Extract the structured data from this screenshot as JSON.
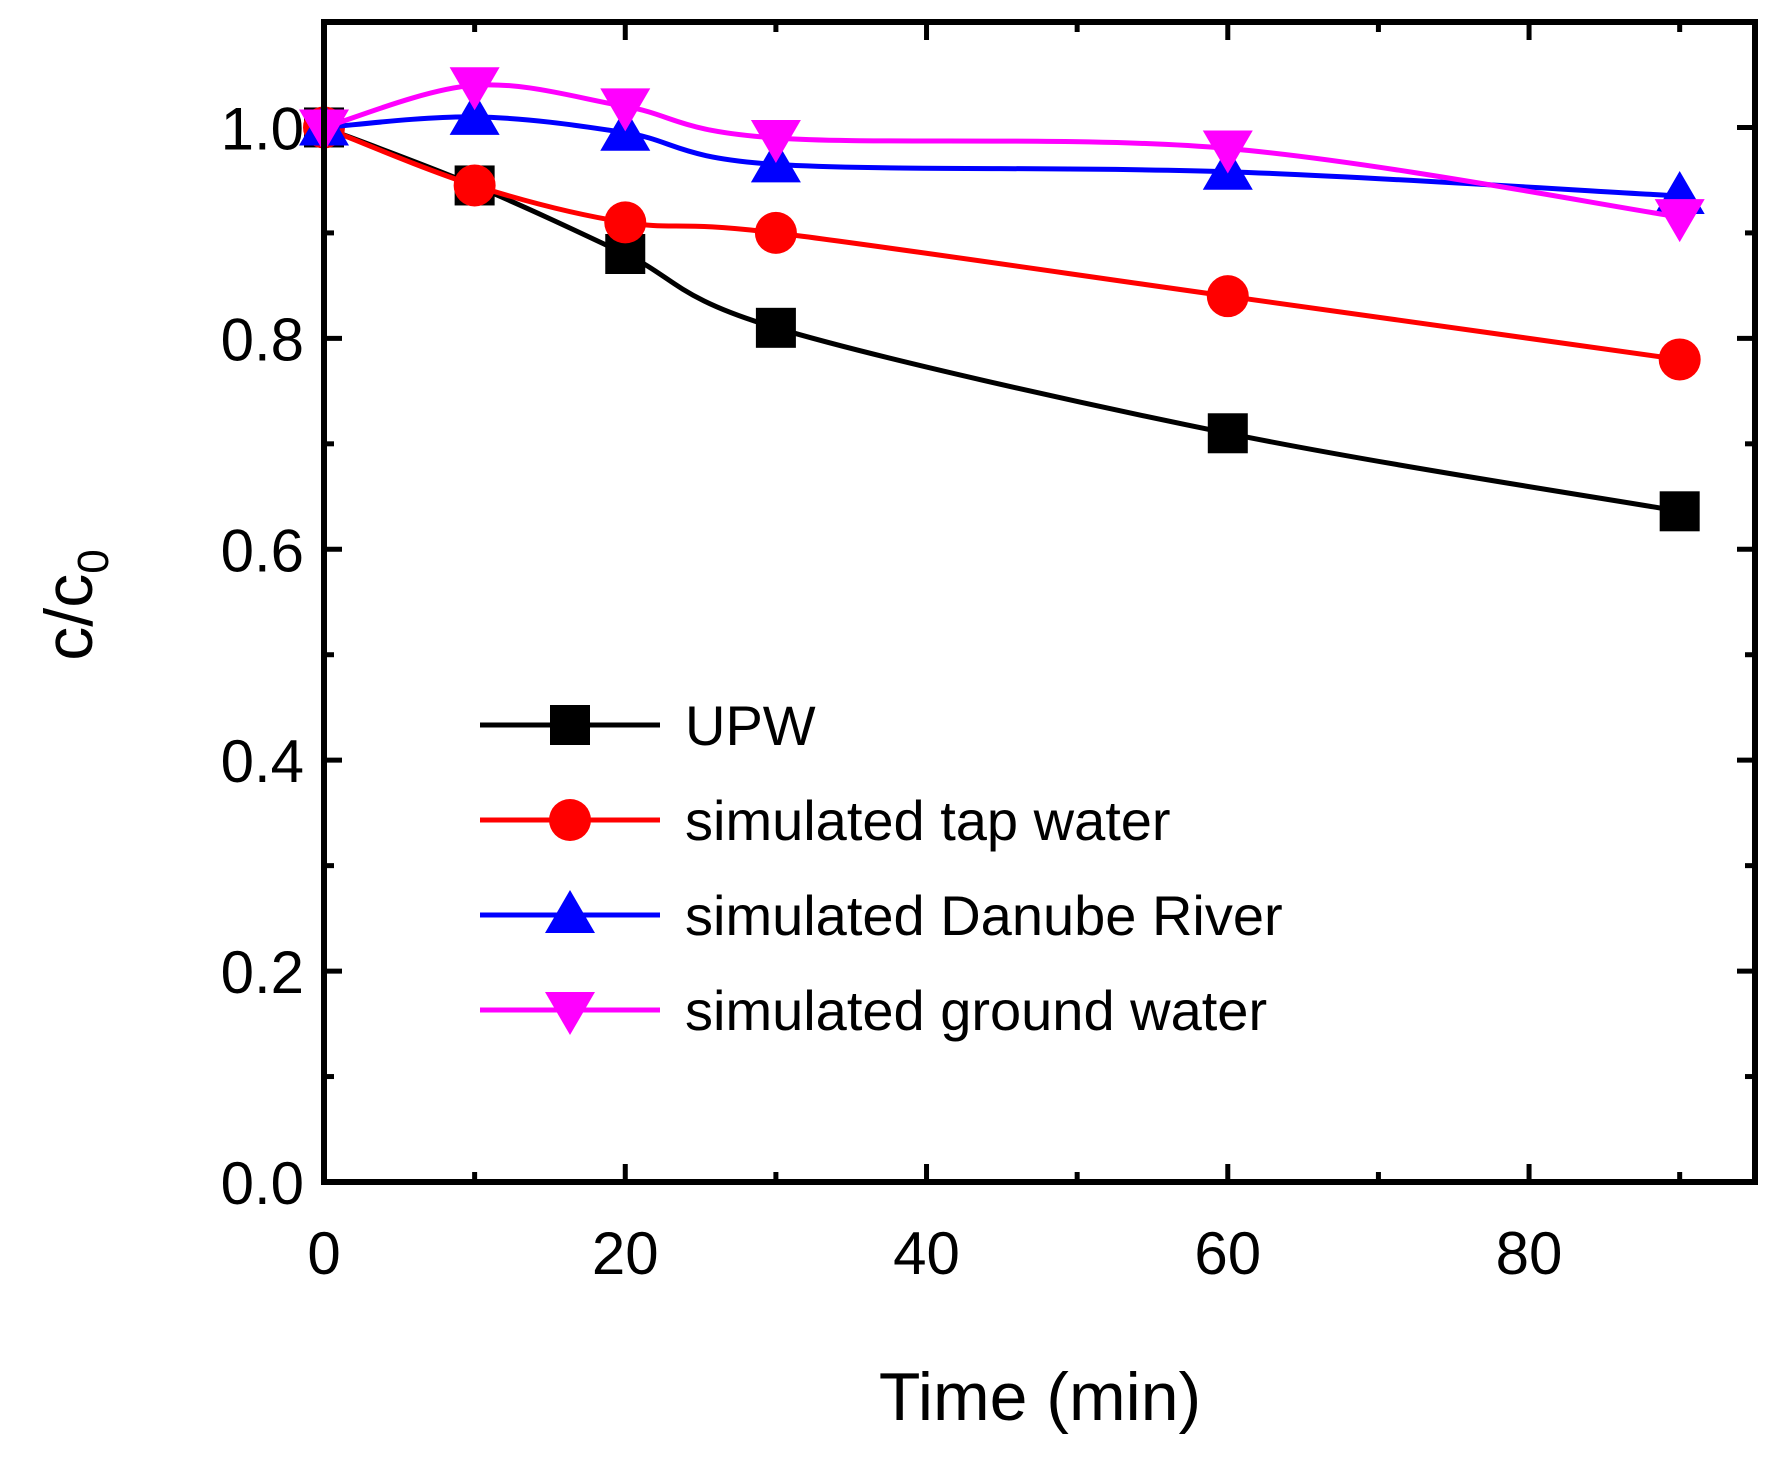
{
  "chart_data": {
    "type": "line",
    "title": "",
    "xlabel": "Time (min)",
    "ylabel_main": "c/c",
    "ylabel_sub": "0",
    "xlim": [
      0,
      95
    ],
    "ylim": [
      0,
      1.1
    ],
    "x_ticks": [
      0,
      20,
      40,
      60,
      80
    ],
    "x_minor_ticks": [
      10,
      30,
      50,
      70,
      90
    ],
    "y_ticks": [
      0.0,
      0.2,
      0.4,
      0.6,
      0.8,
      1.0
    ],
    "y_minor_ticks": [
      0.1,
      0.3,
      0.5,
      0.7,
      0.9
    ],
    "x_tick_labels": [
      "0",
      "20",
      "40",
      "60",
      "80"
    ],
    "y_tick_labels": [
      "0.0",
      "0.2",
      "0.4",
      "0.6",
      "0.8",
      "1.0"
    ],
    "grid": false,
    "legend_position": "center-left",
    "x": [
      0,
      10,
      20,
      30,
      60,
      90
    ],
    "series": [
      {
        "name": "UPW",
        "color": "#000000",
        "marker": "square",
        "values": [
          1.0,
          0.945,
          0.88,
          0.81,
          0.71,
          0.636
        ]
      },
      {
        "name": "simulated tap water",
        "color": "#ff0000",
        "marker": "circle",
        "values": [
          1.0,
          0.945,
          0.91,
          0.9,
          0.84,
          0.78
        ]
      },
      {
        "name": "simulated Danube River",
        "color": "#0000ff",
        "marker": "triangle-up",
        "values": [
          1.0,
          1.01,
          0.995,
          0.965,
          0.958,
          0.935
        ]
      },
      {
        "name": "simulated ground water",
        "color": "#ff00ff",
        "marker": "triangle-down",
        "values": [
          1.0,
          1.04,
          1.02,
          0.99,
          0.98,
          0.915
        ]
      }
    ]
  }
}
